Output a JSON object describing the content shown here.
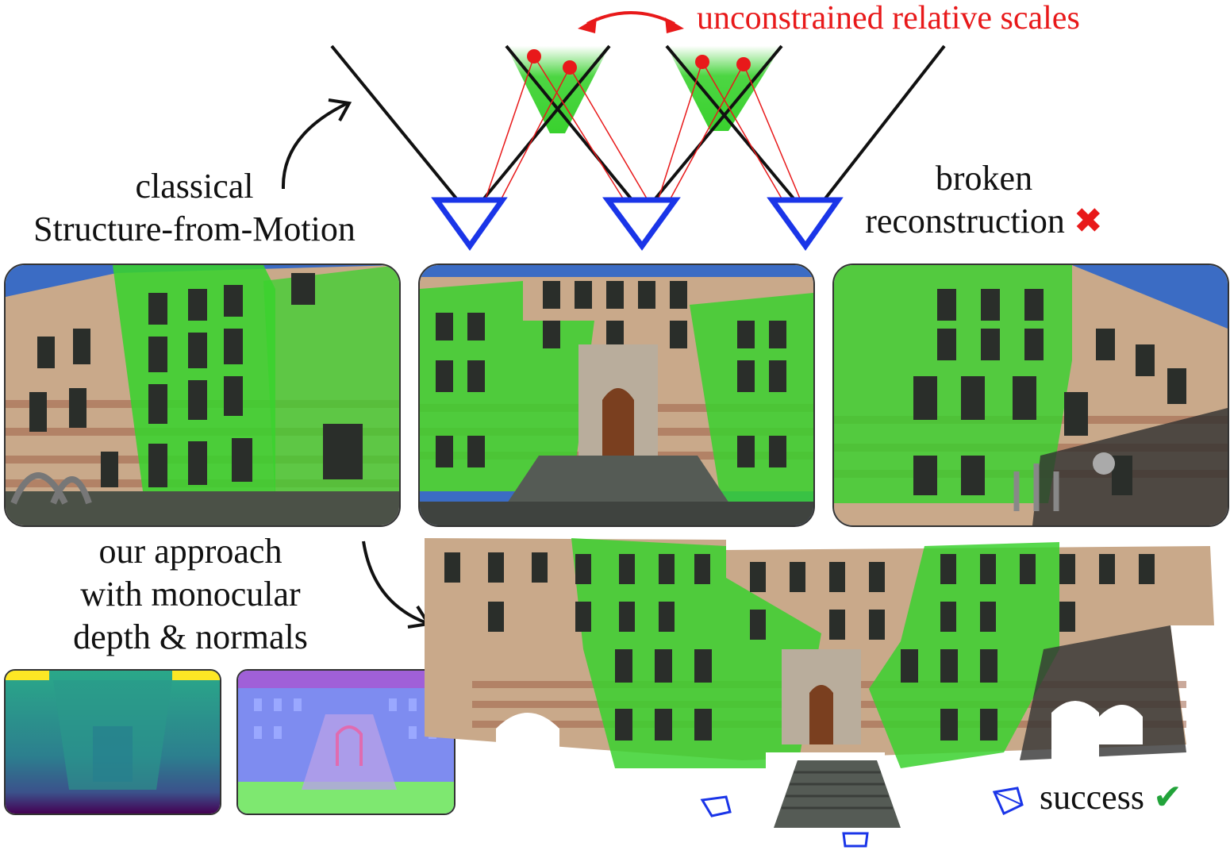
{
  "labels": {
    "top_annotation": "unconstrained relative scales",
    "classical_line1": "classical",
    "classical_line2": "Structure-from-Motion",
    "broken_line1": "broken",
    "broken_line2": "reconstruction",
    "approach_line1": "our approach",
    "approach_line2": "with monocular",
    "approach_line3": "depth & normals",
    "success": "success"
  },
  "icons": {
    "broken_mark": "✖",
    "success_mark": "✔"
  },
  "colors": {
    "camera_blue": "#1a35e8",
    "ray_red": "#e8191a",
    "overlap_green": "#39d12e",
    "success_green": "#22a33a",
    "building_brick": "#c9a98a",
    "sky_blue": "#3b6cc4"
  }
}
